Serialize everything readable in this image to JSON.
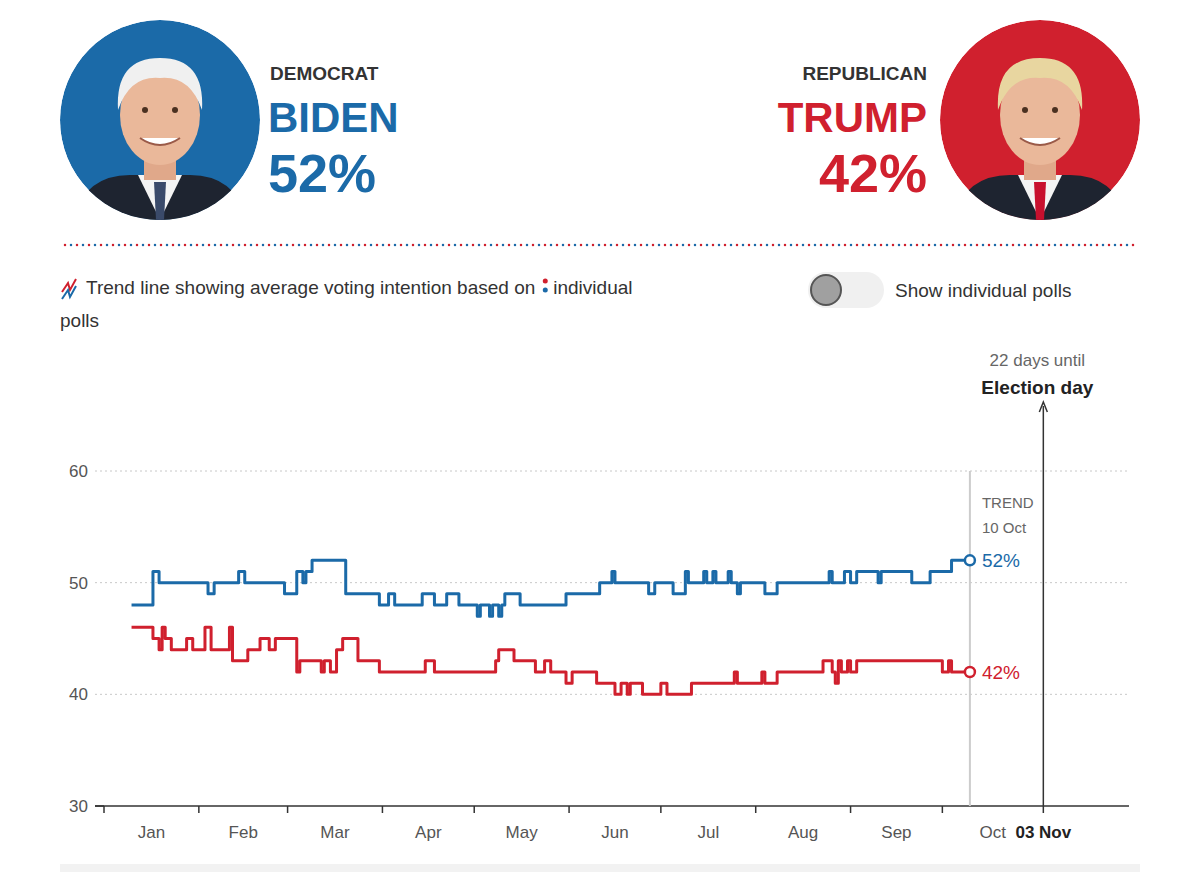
{
  "chart_data": {
    "type": "line",
    "line_style": "step",
    "grid": true,
    "xlim": [
      0,
      335
    ],
    "xticks": [
      {
        "value": 0,
        "label": "Jan"
      },
      {
        "value": 31,
        "label": "Feb"
      },
      {
        "value": 60,
        "label": "Mar"
      },
      {
        "value": 91,
        "label": "Apr"
      },
      {
        "value": 121,
        "label": "May"
      },
      {
        "value": 152,
        "label": "Jun"
      },
      {
        "value": 182,
        "label": "Jul"
      },
      {
        "value": 213,
        "label": "Aug"
      },
      {
        "value": 244,
        "label": "Sep"
      },
      {
        "value": 274,
        "label": "Oct"
      },
      {
        "value": 307,
        "label": "03 Nov"
      }
    ],
    "ylim": [
      30,
      60
    ],
    "yticks": [
      30,
      40,
      50,
      60
    ],
    "key_text": [
      "Trend line showing average voting intention based on",
      "individual polls"
    ],
    "toggle_label": "Show individual polls",
    "annotations": [
      {
        "x": 283,
        "label": "TREND",
        "sublabel": "10 Oct",
        "marker": "line"
      },
      {
        "x": 307,
        "label": "22 days until",
        "sublabel": "Election day",
        "marker": "arrow"
      }
    ],
    "series": [
      {
        "name": "BIDEN",
        "party": "DEMOCRAT",
        "color": "#1b6aa8",
        "current": 52,
        "current_label": "52%",
        "x": [
          9,
          16,
          18,
          34,
          36,
          44,
          46,
          59,
          63,
          65,
          66,
          68,
          79,
          90,
          93,
          95,
          104,
          108,
          112,
          116,
          122,
          123,
          126,
          127,
          129,
          130,
          131,
          136,
          151,
          162,
          166,
          167,
          178,
          180,
          186,
          190,
          191,
          196,
          197,
          199,
          200,
          204,
          205,
          207,
          208,
          216,
          220,
          237,
          238,
          242,
          244,
          246,
          253,
          254,
          264,
          270,
          277,
          283
        ],
        "values": [
          48,
          51,
          50,
          49,
          50,
          51,
          50,
          49,
          51,
          50,
          51,
          52,
          49,
          48,
          49,
          48,
          49,
          48,
          49,
          48,
          47,
          48,
          47,
          48,
          47,
          48,
          49,
          48,
          49,
          50,
          51,
          50,
          49,
          50,
          49,
          51,
          50,
          51,
          50,
          51,
          50,
          51,
          50,
          49,
          50,
          49,
          50,
          51,
          50,
          51,
          50,
          51,
          50,
          51,
          50,
          51,
          52,
          52
        ]
      },
      {
        "name": "TRUMP",
        "party": "REPUBLICAN",
        "color": "#d0202e",
        "current": 42,
        "current_label": "42%",
        "x": [
          9,
          16,
          18,
          19,
          20,
          22,
          27,
          29,
          33,
          35,
          41,
          42,
          47,
          51,
          54,
          56,
          63,
          64,
          71,
          72,
          74,
          76,
          78,
          83,
          90,
          105,
          108,
          128,
          129,
          134,
          141,
          144,
          146,
          151,
          153,
          161,
          167,
          169,
          171,
          172,
          176,
          182,
          184,
          192,
          206,
          207,
          215,
          216,
          220,
          235,
          238,
          239,
          240,
          241,
          243,
          244,
          246,
          274,
          276,
          277,
          283
        ],
        "values": [
          46,
          45,
          44,
          46,
          45,
          44,
          45,
          44,
          46,
          44,
          46,
          43,
          44,
          45,
          44,
          45,
          42,
          43,
          42,
          43,
          42,
          44,
          45,
          43,
          42,
          43,
          42,
          43,
          44,
          43,
          42,
          43,
          42,
          41,
          42,
          41,
          40,
          41,
          40,
          41,
          40,
          41,
          40,
          41,
          42,
          41,
          42,
          41,
          42,
          43,
          42,
          41,
          43,
          42,
          43,
          42,
          43,
          42,
          43,
          42,
          42
        ]
      }
    ]
  }
}
